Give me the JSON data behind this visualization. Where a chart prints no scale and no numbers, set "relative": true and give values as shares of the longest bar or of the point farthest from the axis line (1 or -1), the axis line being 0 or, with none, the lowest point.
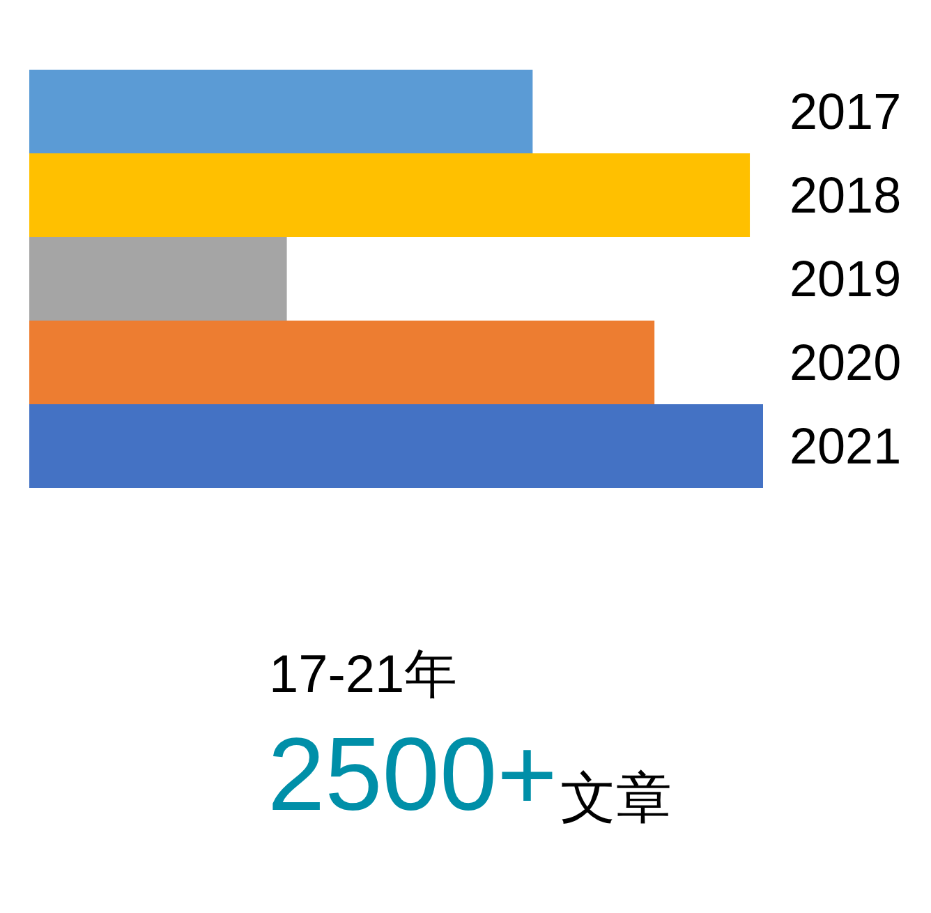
{
  "chart_data": {
    "type": "bar",
    "orientation": "horizontal",
    "relative": true,
    "categories": [
      "2017",
      "2018",
      "2019",
      "2020",
      "2021"
    ],
    "values": [
      0.686,
      0.982,
      0.351,
      0.852,
      1
    ],
    "colors": [
      "#5b9bd5",
      "#ffc000",
      "#a5a5a5",
      "#ed7d31",
      "#4472c4"
    ],
    "annotations": [
      "17-21年",
      "2500+",
      "文章"
    ]
  }
}
